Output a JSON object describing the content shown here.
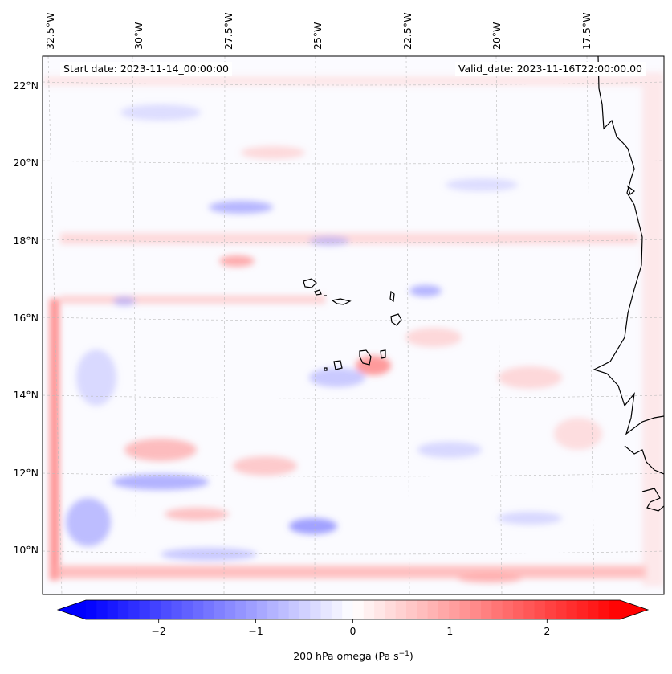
{
  "map": {
    "title_left_prefix": "Start date: ",
    "start_date": "2023-11-14_00:00:00",
    "title_right_prefix": "Valid_date: ",
    "valid_date": "2023-11-16T22:00:00.00",
    "longitude_labels": [
      "32.5°W",
      "30°W",
      "27.5°W",
      "25°W",
      "22.5°W",
      "20°W",
      "17.5°W"
    ],
    "latitude_labels": [
      "22°N",
      "20°N",
      "18°N",
      "16°N",
      "14°N",
      "12°N",
      "10°N"
    ],
    "field": "200 hPa omega",
    "units": "Pa s⁻¹",
    "colormap": "bwr",
    "colors": {
      "min": "#0000ff",
      "mid": "#ffffff",
      "max": "#ff0000",
      "coastline": "#000000"
    }
  },
  "colorbar": {
    "ticks": [
      "−2",
      "−1",
      "0",
      "1",
      "2"
    ],
    "tick_values": [
      -2,
      -1,
      0,
      1,
      2
    ],
    "range": [
      -2.75,
      2.75
    ],
    "label_main": "200 hPa omega (Pa s",
    "label_sup": "−1",
    "label_end": ")"
  }
}
